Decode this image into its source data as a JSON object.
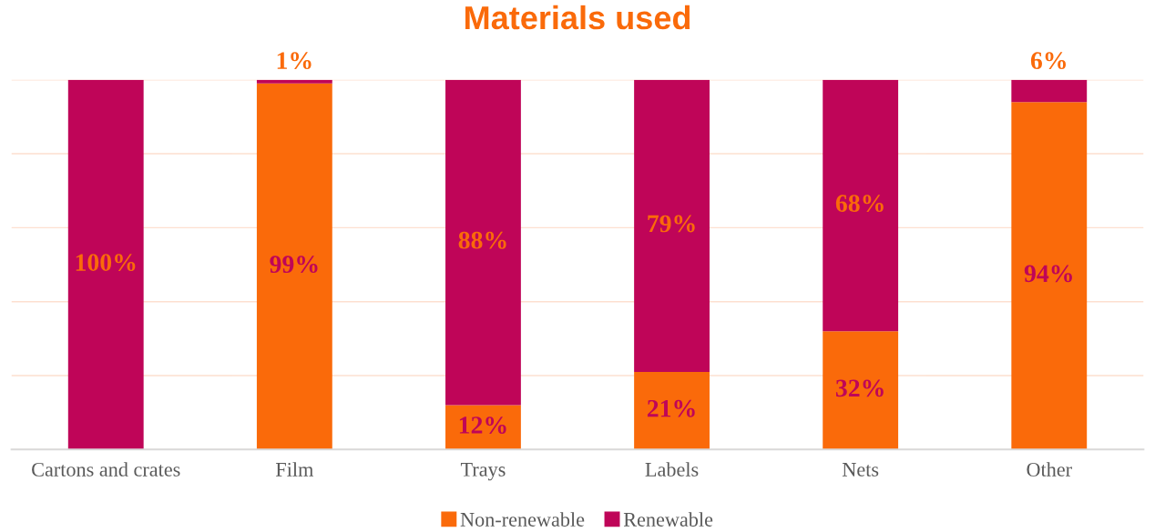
{
  "chart_data": {
    "type": "bar",
    "title": "Materials used",
    "stacked": true,
    "categories": [
      "Cartons and crates",
      "Film",
      "Trays",
      "Labels",
      "Nets",
      "Other"
    ],
    "series": [
      {
        "name": "Non-renewable",
        "color": "#fa6a0a",
        "values": [
          0,
          99,
          12,
          21,
          32,
          94
        ],
        "value_labels": [
          null,
          "99%",
          "12%",
          "21%",
          "32%",
          "94%"
        ]
      },
      {
        "name": "Renewable",
        "color": "#bf0558",
        "values": [
          100,
          1,
          88,
          79,
          68,
          6
        ],
        "value_labels": [
          "100%",
          "1%",
          "88%",
          "79%",
          "68%",
          "6%"
        ]
      }
    ],
    "ylim": [
      0,
      100
    ],
    "yticks": [
      {
        "value": 0,
        "label": null
      },
      {
        "value": 20,
        "label": null
      },
      {
        "value": 40,
        "label": null
      },
      {
        "value": 60,
        "label": null
      },
      {
        "value": 80,
        "label": null
      },
      {
        "value": 100,
        "label": null
      }
    ],
    "grid": "y",
    "tick_labels": "x",
    "legend": "bottom"
  }
}
